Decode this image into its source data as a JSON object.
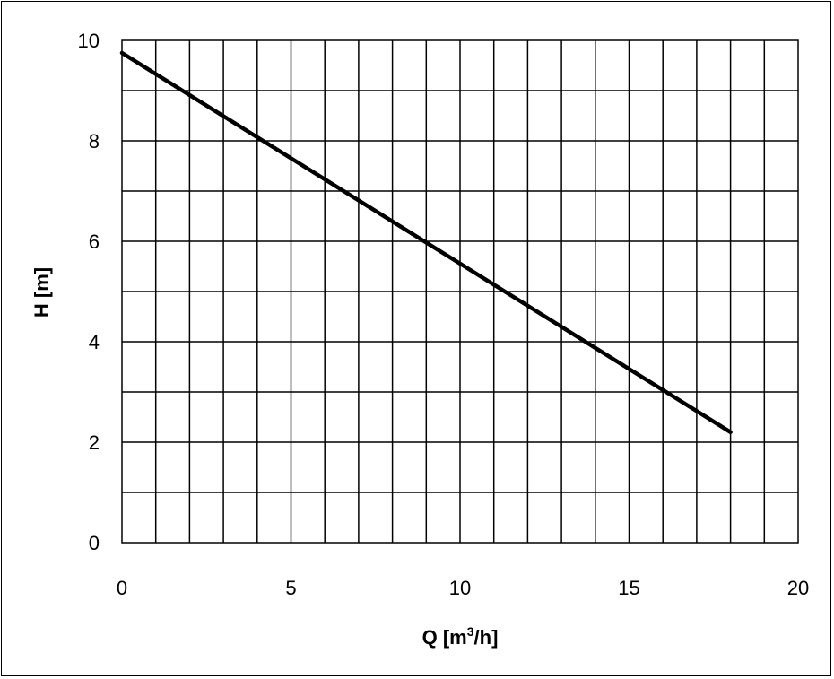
{
  "chart_data": {
    "type": "line",
    "title": "",
    "xlabel": "Q [m³/h]",
    "xlabel_main": "Q [m",
    "xlabel_sup": "3",
    "xlabel_tail": "/h]",
    "ylabel": "H [m]",
    "xlim": [
      0,
      20
    ],
    "ylim": [
      0,
      10
    ],
    "x_ticks": [
      "0",
      "5",
      "10",
      "15",
      "20"
    ],
    "y_ticks": [
      "0",
      "2",
      "4",
      "6",
      "8",
      "10"
    ],
    "x_grid_step": 1,
    "y_grid_step": 1,
    "grid": true,
    "legend": "none",
    "line_color": "#000000",
    "series": [
      {
        "x": [
          0,
          18
        ],
        "y": [
          9.75,
          2.2
        ]
      }
    ]
  }
}
